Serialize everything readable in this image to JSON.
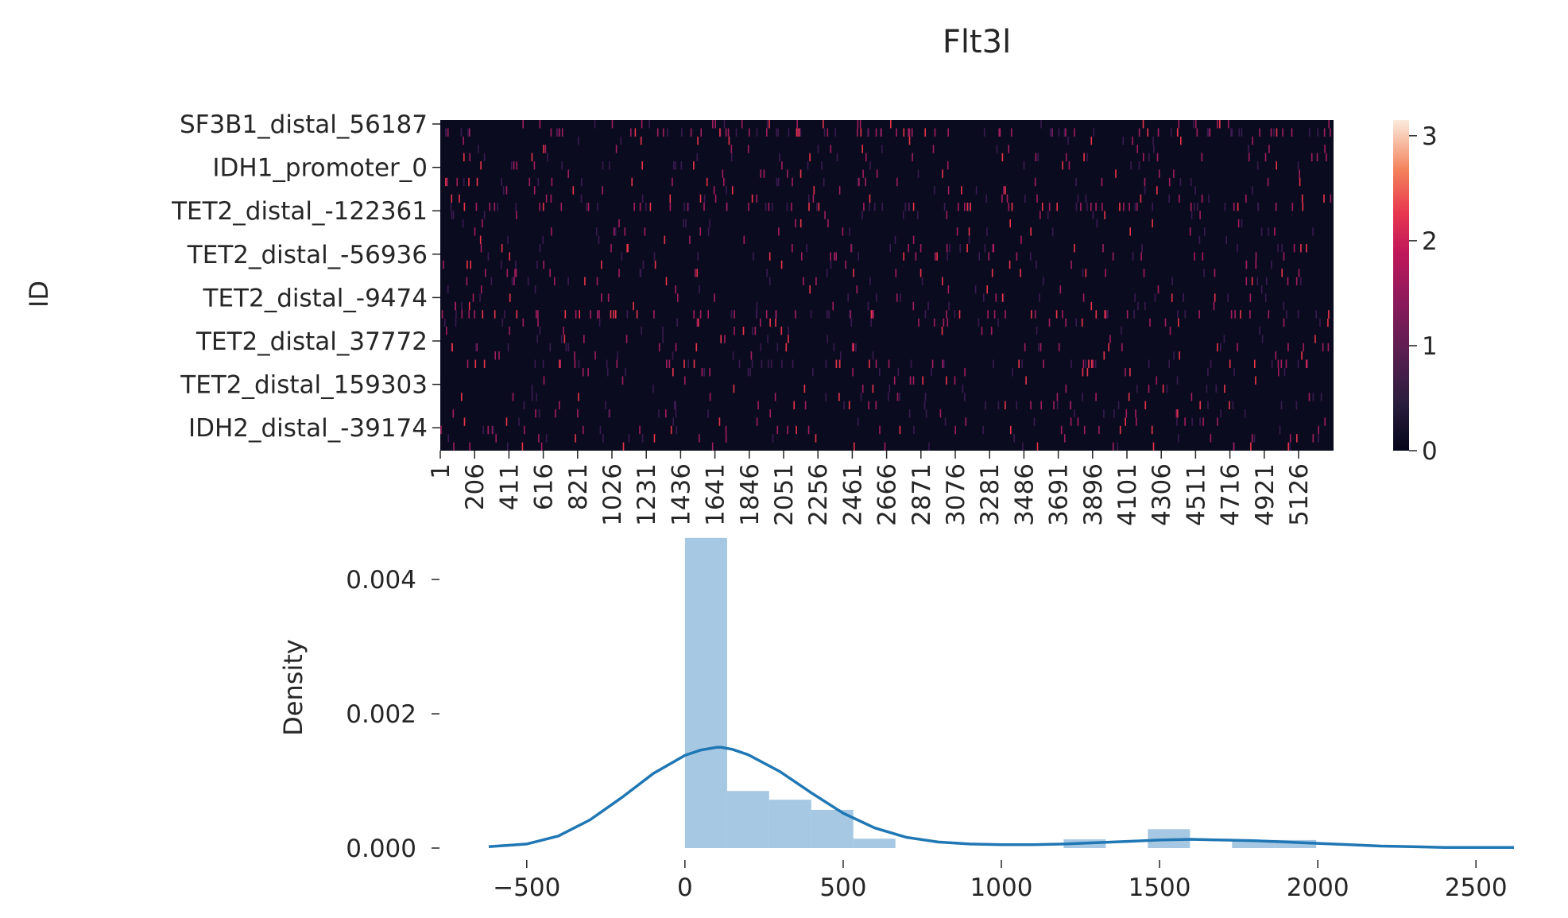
{
  "chart_data": [
    {
      "type": "heatmap",
      "title": "Flt3l",
      "ylabel": "ID",
      "xlabel": "",
      "row_tick_labels": [
        "SF3B1_distal_56187",
        "IDH1_promoter_0",
        "TET2_distal_-122361",
        "TET2_distal_-56936",
        "TET2_distal_-9474",
        "TET2_distal_37772",
        "TET2_distal_159303",
        "IDH2_distal_-39174"
      ],
      "col_tick_labels": [
        "1",
        "206",
        "411",
        "616",
        "821",
        "1026",
        "1231",
        "1436",
        "1641",
        "1846",
        "2051",
        "2256",
        "2461",
        "2666",
        "2871",
        "3076",
        "3281",
        "3486",
        "3691",
        "3896",
        "4101",
        "4306",
        "4511",
        "4716",
        "4921",
        "5126"
      ],
      "n_columns": 5300,
      "colorbar": {
        "ticks": [
          0,
          1,
          2,
          3
        ],
        "range": [
          0,
          3.15
        ],
        "colormap": "rocket"
      },
      "colors": {
        "background": "#0b0b1f",
        "low": "#3a1a4f",
        "mid": "#a11d5c",
        "high": "#e8344a"
      }
    },
    {
      "type": "histogram",
      "ylabel": "Density",
      "xlabel": "",
      "xticks": [
        -500,
        0,
        500,
        1000,
        1500,
        2000,
        2500
      ],
      "yticks": [
        "0.000",
        "0.002",
        "0.004"
      ],
      "xlim": [
        -620,
        2620
      ],
      "ylim": [
        0,
        0.0047
      ],
      "bins": [
        {
          "x0": 0,
          "x1": 133,
          "density": 0.00462
        },
        {
          "x0": 133,
          "x1": 266,
          "density": 0.00085
        },
        {
          "x0": 266,
          "x1": 399,
          "density": 0.00072
        },
        {
          "x0": 399,
          "x1": 532,
          "density": 0.00057
        },
        {
          "x0": 532,
          "x1": 665,
          "density": 0.00014
        },
        {
          "x0": 665,
          "x1": 798,
          "density": 0
        },
        {
          "x0": 798,
          "x1": 931,
          "density": 0
        },
        {
          "x0": 931,
          "x1": 1064,
          "density": 0
        },
        {
          "x0": 1064,
          "x1": 1197,
          "density": 0
        },
        {
          "x0": 1197,
          "x1": 1330,
          "density": 0.00013
        },
        {
          "x0": 1330,
          "x1": 1463,
          "density": 0
        },
        {
          "x0": 1463,
          "x1": 1596,
          "density": 0.00028
        },
        {
          "x0": 1596,
          "x1": 1729,
          "density": 0
        },
        {
          "x0": 1729,
          "x1": 1862,
          "density": 0.00012
        },
        {
          "x0": 1862,
          "x1": 1995,
          "density": 0.00012
        }
      ],
      "kde": {
        "x": [
          -620,
          -500,
          -400,
          -300,
          -200,
          -100,
          0,
          50,
          100,
          115,
          150,
          200,
          300,
          400,
          500,
          600,
          700,
          800,
          900,
          1000,
          1100,
          1200,
          1300,
          1400,
          1500,
          1600,
          1700,
          1800,
          1900,
          2000,
          2100,
          2200,
          2300,
          2400,
          2500,
          2620
        ],
        "y": [
          2e-05,
          6e-05,
          0.00018,
          0.00042,
          0.00075,
          0.00111,
          0.00138,
          0.00146,
          0.0015,
          0.0015,
          0.00147,
          0.00139,
          0.00114,
          0.00082,
          0.00052,
          0.0003,
          0.00016,
          9e-05,
          6e-05,
          5e-05,
          5e-05,
          6e-05,
          8e-05,
          0.0001,
          0.00012,
          0.00013,
          0.00012,
          0.00011,
          9e-05,
          7e-05,
          5e-05,
          3e-05,
          2e-05,
          1e-05,
          1e-05,
          1e-05
        ]
      },
      "colors": {
        "bars": "#a6c8e2",
        "kde": "#1f77b4"
      }
    }
  ]
}
